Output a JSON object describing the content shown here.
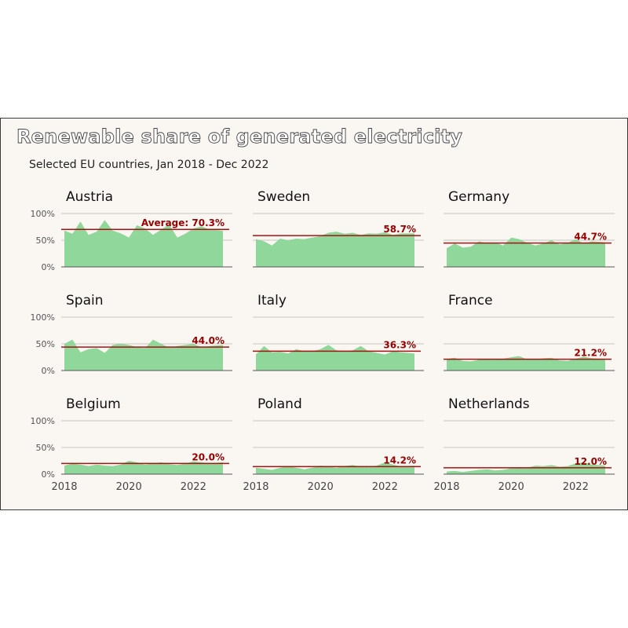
{
  "title": "Renewable share of generated electricity",
  "subtitle": "Selected EU countries, Jan 2018 - Dec 2022",
  "colors": {
    "area": "#8fd79a",
    "average_line": "#aa1111",
    "average_text": "#990000",
    "grid": "#c8c4bf",
    "background": "#faf7f3"
  },
  "chart_data": {
    "type": "area",
    "title": "Renewable share of generated electricity",
    "subtitle": "Selected EU countries, Jan 2018 - Dec 2022",
    "xlabel": "",
    "ylabel": "",
    "x_ticks": [
      "2018",
      "2020",
      "2022"
    ],
    "y_ticks": [
      "0%",
      "50%",
      "100%"
    ],
    "ylim": [
      0,
      100
    ],
    "xlim": [
      "2018-01",
      "2022-12"
    ],
    "grid": true,
    "average_label_prefix": "Average: ",
    "panels": [
      {
        "country": "Austria",
        "average": 70.3,
        "average_label": "Average: 70.3%",
        "dates": [
          "2018-01",
          "2018-04",
          "2018-07",
          "2018-10",
          "2019-01",
          "2019-04",
          "2019-07",
          "2019-10",
          "2020-01",
          "2020-04",
          "2020-07",
          "2020-10",
          "2021-01",
          "2021-04",
          "2021-07",
          "2021-10",
          "2022-01",
          "2022-04",
          "2022-07",
          "2022-12"
        ],
        "values": [
          68,
          62,
          85,
          60,
          66,
          88,
          68,
          63,
          55,
          78,
          72,
          60,
          70,
          80,
          55,
          62,
          72,
          76,
          70,
          68
        ]
      },
      {
        "country": "Sweden",
        "average": 58.7,
        "average_label": "58.7%",
        "dates": [
          "2018-01",
          "2018-04",
          "2018-07",
          "2018-10",
          "2019-01",
          "2019-04",
          "2019-07",
          "2019-10",
          "2020-01",
          "2020-04",
          "2020-07",
          "2020-10",
          "2021-01",
          "2021-04",
          "2021-07",
          "2021-10",
          "2022-01",
          "2022-04",
          "2022-07",
          "2022-12"
        ],
        "values": [
          52,
          48,
          40,
          53,
          50,
          53,
          52,
          55,
          58,
          64,
          66,
          62,
          64,
          60,
          63,
          62,
          65,
          60,
          63,
          63
        ]
      },
      {
        "country": "Germany",
        "average": 44.7,
        "average_label": "44.7%",
        "dates": [
          "2018-01",
          "2018-04",
          "2018-07",
          "2018-10",
          "2019-01",
          "2019-04",
          "2019-07",
          "2019-10",
          "2020-01",
          "2020-04",
          "2020-07",
          "2020-10",
          "2021-01",
          "2021-04",
          "2021-07",
          "2021-10",
          "2022-01",
          "2022-04",
          "2022-07",
          "2022-12"
        ],
        "values": [
          35,
          44,
          36,
          38,
          48,
          44,
          46,
          40,
          55,
          52,
          45,
          40,
          44,
          50,
          42,
          45,
          52,
          44,
          48,
          46
        ]
      },
      {
        "country": "Spain",
        "average": 44.0,
        "average_label": "44.0%",
        "dates": [
          "2018-01",
          "2018-04",
          "2018-07",
          "2018-10",
          "2019-01",
          "2019-04",
          "2019-07",
          "2019-10",
          "2020-01",
          "2020-04",
          "2020-07",
          "2020-10",
          "2021-01",
          "2021-04",
          "2021-07",
          "2021-10",
          "2022-01",
          "2022-04",
          "2022-07",
          "2022-12"
        ],
        "values": [
          50,
          58,
          34,
          40,
          42,
          33,
          48,
          50,
          48,
          44,
          42,
          58,
          50,
          43,
          46,
          48,
          50,
          44,
          46,
          48
        ]
      },
      {
        "country": "Italy",
        "average": 36.3,
        "average_label": "36.3%",
        "dates": [
          "2018-01",
          "2018-04",
          "2018-07",
          "2018-10",
          "2019-01",
          "2019-04",
          "2019-07",
          "2019-10",
          "2020-01",
          "2020-04",
          "2020-07",
          "2020-10",
          "2021-01",
          "2021-04",
          "2021-07",
          "2021-10",
          "2022-01",
          "2022-04",
          "2022-07",
          "2022-12"
        ],
        "values": [
          30,
          46,
          34,
          35,
          32,
          40,
          36,
          36,
          40,
          48,
          38,
          36,
          38,
          46,
          36,
          33,
          30,
          36,
          34,
          32
        ]
      },
      {
        "country": "France",
        "average": 21.2,
        "average_label": "21.2%",
        "dates": [
          "2018-01",
          "2018-04",
          "2018-07",
          "2018-10",
          "2019-01",
          "2019-04",
          "2019-07",
          "2019-10",
          "2020-01",
          "2020-04",
          "2020-07",
          "2020-10",
          "2021-01",
          "2021-04",
          "2021-07",
          "2021-10",
          "2022-01",
          "2022-04",
          "2022-07",
          "2022-12"
        ],
        "values": [
          22,
          24,
          18,
          17,
          20,
          22,
          20,
          22,
          25,
          27,
          21,
          21,
          23,
          24,
          19,
          18,
          22,
          26,
          23,
          22
        ]
      },
      {
        "country": "Belgium",
        "average": 20.0,
        "average_label": "20.0%",
        "dates": [
          "2018-01",
          "2018-04",
          "2018-07",
          "2018-10",
          "2019-01",
          "2019-04",
          "2019-07",
          "2019-10",
          "2020-01",
          "2020-04",
          "2020-07",
          "2020-10",
          "2021-01",
          "2021-04",
          "2021-07",
          "2021-10",
          "2022-01",
          "2022-04",
          "2022-07",
          "2022-12"
        ],
        "values": [
          16,
          20,
          18,
          15,
          18,
          16,
          15,
          18,
          25,
          22,
          18,
          20,
          22,
          19,
          17,
          20,
          24,
          22,
          20,
          22
        ]
      },
      {
        "country": "Poland",
        "average": 14.2,
        "average_label": "14.2%",
        "dates": [
          "2018-01",
          "2018-04",
          "2018-07",
          "2018-10",
          "2019-01",
          "2019-04",
          "2019-07",
          "2019-10",
          "2020-01",
          "2020-04",
          "2020-07",
          "2020-10",
          "2021-01",
          "2021-04",
          "2021-07",
          "2021-10",
          "2022-01",
          "2022-04",
          "2022-07",
          "2022-12"
        ],
        "values": [
          12,
          10,
          8,
          12,
          15,
          12,
          9,
          12,
          16,
          14,
          12,
          15,
          17,
          14,
          13,
          16,
          22,
          18,
          14,
          16
        ]
      },
      {
        "country": "Netherlands",
        "average": 12.0,
        "average_label": "12.0%",
        "dates": [
          "2018-01",
          "2018-04",
          "2018-07",
          "2018-10",
          "2019-01",
          "2019-04",
          "2019-07",
          "2019-10",
          "2020-01",
          "2020-04",
          "2020-07",
          "2020-10",
          "2021-01",
          "2021-04",
          "2021-07",
          "2021-10",
          "2022-01",
          "2022-04",
          "2022-07",
          "2022-12"
        ],
        "values": [
          5,
          6,
          4,
          6,
          8,
          9,
          7,
          8,
          11,
          13,
          12,
          16,
          15,
          17,
          14,
          15,
          20,
          22,
          18,
          16
        ]
      }
    ]
  }
}
